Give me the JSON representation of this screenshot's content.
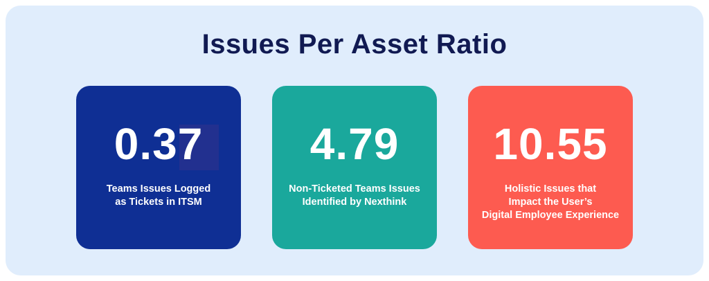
{
  "title": "Issues Per Asset Ratio",
  "colors": {
    "background": "#e0edfc",
    "title": "#111a52",
    "card1": "#0f2f94",
    "card2": "#1aa89c",
    "card3": "#fd5b50"
  },
  "cards": [
    {
      "value": "0.37",
      "label_lines": [
        "Teams Issues Logged",
        "as Tickets in ITSM"
      ]
    },
    {
      "value": "4.79",
      "label_lines": [
        "Non-Ticketed Teams Issues",
        "Identified by Nexthink"
      ]
    },
    {
      "value": "10.55",
      "label_lines": [
        "Holistic Issues that",
        "Impact the User’s",
        "Digital Employee Experience"
      ]
    }
  ]
}
